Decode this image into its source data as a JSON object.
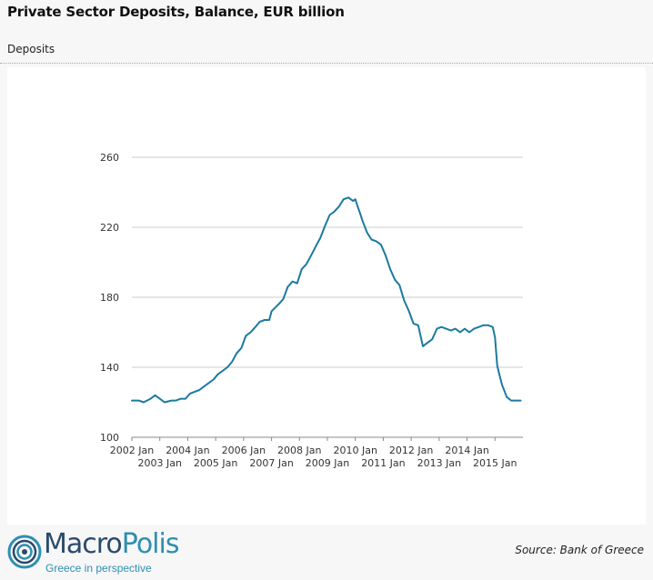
{
  "header": {
    "title": "Private Sector Deposits, Balance, EUR billion",
    "subtitle": "Deposits"
  },
  "footer": {
    "logo_macro": "Macro",
    "logo_polis": "Polis",
    "logo_tagline": "Greece in perspective",
    "source": "Source: Bank of Greece"
  },
  "colors": {
    "line": "#1b7aa0",
    "grid": "#cccccc",
    "macro": "#2b4a6b",
    "polis": "#2e8fb0"
  },
  "chart_data": {
    "type": "line",
    "title": "",
    "xlabel": "",
    "ylabel": "",
    "ylim": [
      100,
      260
    ],
    "yticks": [
      100,
      140,
      180,
      220,
      260
    ],
    "xlim": [
      2002.0,
      2016.0
    ],
    "xticks_upper": [
      "2002 Jan",
      "2004 Jan",
      "2006 Jan",
      "2008 Jan",
      "2010 Jan",
      "2012 Jan",
      "2014 Jan"
    ],
    "xticks_lower": [
      "2003 Jan",
      "2005 Jan",
      "2007 Jan",
      "2009 Jan",
      "2011 Jan",
      "2013 Jan",
      "2015 Jan"
    ],
    "grid": "horizontal",
    "series": [
      {
        "x": [
          2002.0,
          2002.25,
          2002.42,
          2002.67,
          2002.83,
          2003.0,
          2003.17,
          2003.42,
          2003.58,
          2003.75,
          2003.92,
          2004.08,
          2004.25,
          2004.42,
          2004.58,
          2004.75,
          2004.92,
          2005.08,
          2005.25,
          2005.42,
          2005.58,
          2005.75,
          2005.92,
          2006.08,
          2006.25,
          2006.42,
          2006.58,
          2006.75,
          2006.92,
          2007.0,
          2007.25,
          2007.42,
          2007.58,
          2007.75,
          2007.92,
          2008.08,
          2008.25,
          2008.42,
          2008.58,
          2008.75,
          2008.92,
          2009.08,
          2009.25,
          2009.42,
          2009.58,
          2009.75,
          2009.92,
          2010.0,
          2010.08,
          2010.17,
          2010.25,
          2010.42,
          2010.58,
          2010.75,
          2010.92,
          2011.08,
          2011.25,
          2011.42,
          2011.58,
          2011.75,
          2011.92,
          2012.08,
          2012.25,
          2012.42,
          2012.58,
          2012.75,
          2012.92,
          2013.08,
          2013.25,
          2013.42,
          2013.58,
          2013.75,
          2013.92,
          2014.08,
          2014.25,
          2014.42,
          2014.58,
          2014.75,
          2014.92,
          2015.0,
          2015.08,
          2015.17,
          2015.25,
          2015.42,
          2015.58,
          2015.75,
          2015.92
        ],
        "values": [
          121,
          121,
          120,
          122,
          124,
          122,
          120,
          121,
          121,
          122,
          122,
          125,
          126,
          127,
          129,
          131,
          133,
          136,
          138,
          140,
          143,
          148,
          151,
          158,
          160,
          163,
          166,
          167,
          167,
          172,
          176,
          179,
          186,
          189,
          188,
          196,
          199,
          204,
          209,
          214,
          221,
          227,
          229,
          232,
          236,
          237,
          235,
          236,
          232,
          228,
          224,
          217,
          213,
          212,
          210,
          204,
          196,
          190,
          187,
          178,
          172,
          165,
          164,
          152,
          154,
          156,
          162,
          163,
          162,
          161,
          162,
          160,
          162,
          160,
          162,
          163,
          164,
          164,
          163,
          157,
          141,
          135,
          130,
          123,
          121,
          121,
          121
        ]
      }
    ]
  }
}
